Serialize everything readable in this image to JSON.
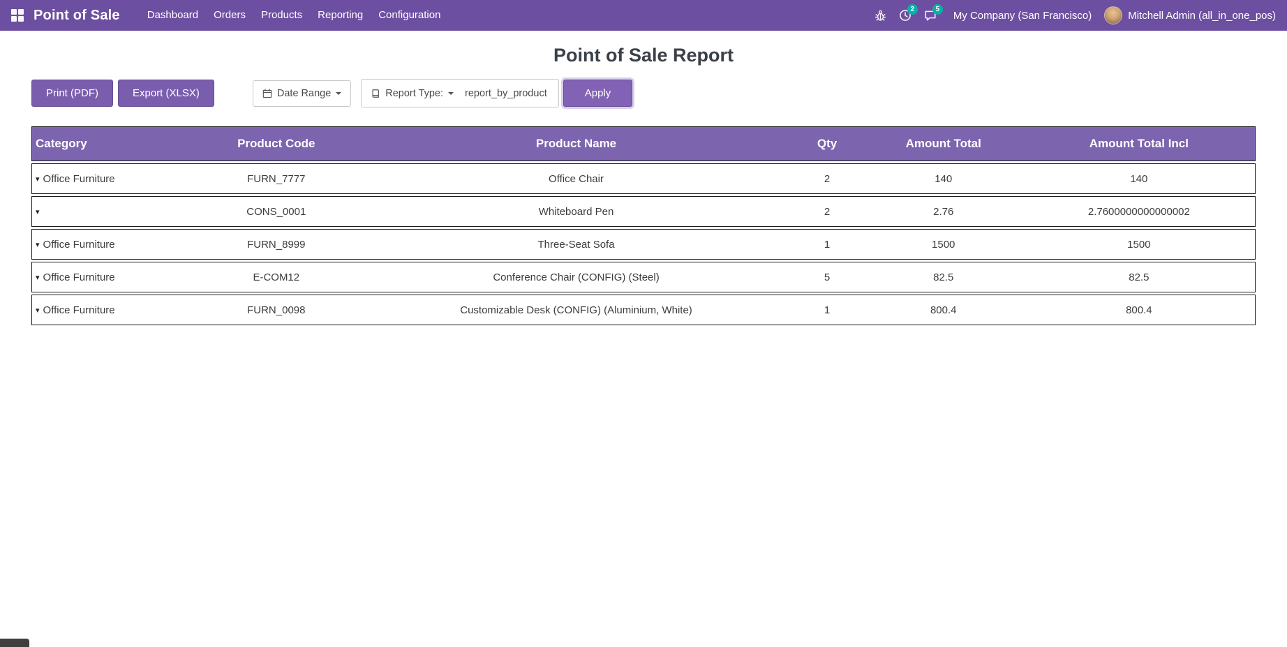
{
  "colors": {
    "primary": "#6d4fa1",
    "header": "#7c64af",
    "button": "#7a5dad",
    "button_border": "#684d96",
    "apply": "#8162b5",
    "badge": "#00b3ab",
    "title_text": "#3a4047"
  },
  "navbar": {
    "app_title": "Point of Sale",
    "menu": [
      "Dashboard",
      "Orders",
      "Products",
      "Reporting",
      "Configuration"
    ],
    "activities_count": "2",
    "messages_count": "5",
    "company": "My Company (San Francisco)",
    "user": "Mitchell Admin (all_in_one_pos)"
  },
  "icons": {
    "apps": "grid-icon",
    "debug": "bug-icon",
    "activities": "clock-icon",
    "messages": "chat-bubble-icon",
    "date_range": "calendar-icon",
    "report_type": "book-icon",
    "dropdown": "caret-down-icon",
    "row_expand": "caret-down-icon"
  },
  "page": {
    "title": "Point of Sale Report"
  },
  "toolbar": {
    "print_label": "Print (PDF)",
    "export_label": "Export (XLSX)",
    "date_range_label": "Date Range",
    "report_type_label": "Report Type:",
    "report_type_value": "report_by_product",
    "apply_label": "Apply"
  },
  "table": {
    "headers": [
      "Category",
      "Product Code",
      "Product Name",
      "Qty",
      "Amount Total",
      "Amount Total Incl"
    ],
    "rows": [
      {
        "category": "Office Furniture",
        "code": "FURN_7777",
        "name": "Office Chair",
        "qty": "2",
        "amount_total": "140",
        "amount_total_incl": "140"
      },
      {
        "category": "",
        "code": "CONS_0001",
        "name": "Whiteboard Pen",
        "qty": "2",
        "amount_total": "2.76",
        "amount_total_incl": "2.7600000000000002"
      },
      {
        "category": "Office Furniture",
        "code": "FURN_8999",
        "name": "Three-Seat Sofa",
        "qty": "1",
        "amount_total": "1500",
        "amount_total_incl": "1500"
      },
      {
        "category": "Office Furniture",
        "code": "E-COM12",
        "name": "Conference Chair (CONFIG) (Steel)",
        "qty": "5",
        "amount_total": "82.5",
        "amount_total_incl": "82.5"
      },
      {
        "category": "Office Furniture",
        "code": "FURN_0098",
        "name": "Customizable Desk (CONFIG) (Aluminium, White)",
        "qty": "1",
        "amount_total": "800.4",
        "amount_total_incl": "800.4"
      }
    ]
  }
}
